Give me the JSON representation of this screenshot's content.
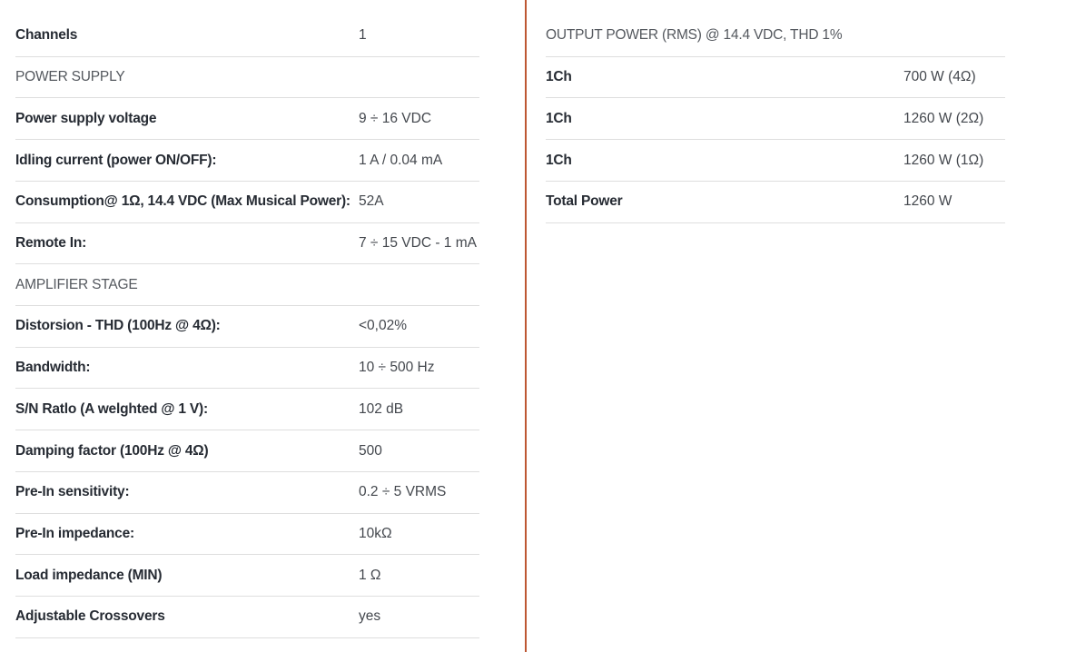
{
  "colors": {
    "accent_divider": "#bd5733",
    "row_divider": "#dedede",
    "label_text": "#262b33",
    "value_text": "#43474d",
    "section_text": "#54585e",
    "background": "#ffffff"
  },
  "tables": [
    {
      "name": "left-spec-table",
      "rows": [
        {
          "type": "spec",
          "label": "Channels",
          "value": "1"
        },
        {
          "type": "section",
          "label": "POWER SUPPLY"
        },
        {
          "type": "spec",
          "label": "Power supply voltage",
          "value": "9 ÷ 16 VDC"
        },
        {
          "type": "spec",
          "label": "Idling current (power ON/OFF):",
          "value": "1 A / 0.04 mA"
        },
        {
          "type": "spec",
          "label": "Consumption@ 1Ω, 14.4 VDC (Max Musical Power):",
          "value": "52A"
        },
        {
          "type": "spec",
          "label": "Remote In:",
          "value": "7 ÷ 15 VDC - 1 mA"
        },
        {
          "type": "section",
          "label": "AMPLIFIER STAGE"
        },
        {
          "type": "spec",
          "label": "Distorsion - THD (100Hz @ 4Ω):",
          "value": "<0,02%"
        },
        {
          "type": "spec",
          "label": "Bandwidth:",
          "value": "10 ÷ 500 Hz"
        },
        {
          "type": "spec",
          "label": "S/N Ratlo (A welghted @ 1 V):",
          "value": "102 dB"
        },
        {
          "type": "spec",
          "label": "Damping factor (100Hz @ 4Ω)",
          "value": "500"
        },
        {
          "type": "spec",
          "label": "Pre-In sensitivity:",
          "value": "0.2 ÷ 5 VRMS"
        },
        {
          "type": "spec",
          "label": "Pre-In impedance:",
          "value": "10kΩ"
        },
        {
          "type": "spec",
          "label": "Load impedance (MIN)",
          "value": "1 Ω"
        },
        {
          "type": "spec",
          "label": "Adjustable Crossovers",
          "value": "yes"
        }
      ]
    },
    {
      "name": "right-spec-table",
      "rows": [
        {
          "type": "section",
          "label": "OUTPUT POWER (RMS) @ 14.4 VDC, THD 1%"
        },
        {
          "type": "spec",
          "label": "1Ch",
          "value": "700 W (4Ω)"
        },
        {
          "type": "spec",
          "label": "1Ch",
          "value": "1260 W (2Ω)"
        },
        {
          "type": "spec",
          "label": "1Ch",
          "value": "1260 W (1Ω)"
        },
        {
          "type": "spec",
          "label": "Total Power",
          "value": "1260 W"
        }
      ]
    }
  ]
}
